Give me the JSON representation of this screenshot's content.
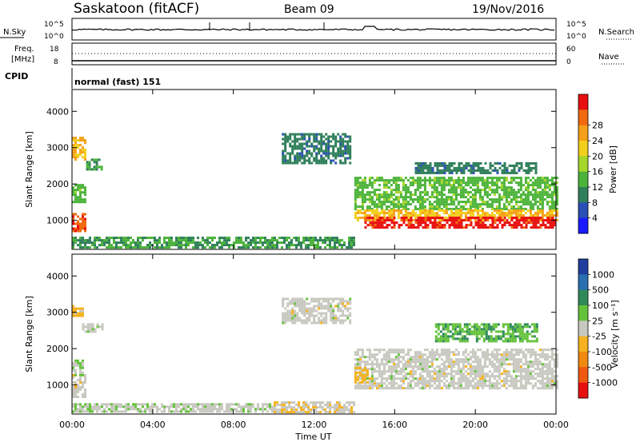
{
  "header": {
    "station": "Saskatoon (fitACF)",
    "beam": "Beam 09",
    "date": "19/Nov/2016"
  },
  "noise_panel": {
    "left_label": "N.Sky",
    "left_ticks": [
      "10^5",
      "10^0"
    ],
    "right_label": "N.Search",
    "right_ticks": [
      "10^5",
      "10^0"
    ]
  },
  "freq_panel": {
    "left_label": "Freq.",
    "left_unit": "[MHz]",
    "left_ticks": [
      "18",
      "8"
    ],
    "right_label": "Nave",
    "right_ticks": [
      "60",
      "0"
    ]
  },
  "cpid": {
    "label": "CPID",
    "value": "normal (fast) 151"
  },
  "time_axis": {
    "title": "Time UT",
    "ticks": [
      "00:00",
      "04:00",
      "08:00",
      "12:00",
      "16:00",
      "20:00",
      "00:00"
    ]
  },
  "range_axis": {
    "title": "Slant Range [km]",
    "ticks": [
      "1000",
      "2000",
      "3000",
      "4000"
    ]
  },
  "power_colorbar": {
    "title": "Power [dB]",
    "ticks": [
      "4",
      "8",
      "12",
      "16",
      "20",
      "24",
      "28"
    ],
    "colors": [
      "#1a1aff",
      "#2a4fb5",
      "#2f7f5a",
      "#4bb33a",
      "#a5d62a",
      "#f2cf1d",
      "#f5a018",
      "#f06a10",
      "#e81010"
    ]
  },
  "velocity_colorbar": {
    "title": "Velocity [m s⁻¹]",
    "ticks": [
      "1000",
      "500",
      "100",
      "25",
      "-25",
      "-100",
      "-500",
      "-1000"
    ],
    "colors": [
      "#1f3f9f",
      "#2a6fb0",
      "#2f8a5a",
      "#64c23a",
      "#c8c8c0",
      "#f5b21e",
      "#f08a10",
      "#ef5a10",
      "#e81010"
    ]
  },
  "chart_data": [
    {
      "type": "heatmap",
      "title": "Power [dB]",
      "xlabel": "Time UT",
      "ylabel": "Slant Range [km]",
      "xlim": [
        0,
        24
      ],
      "ylim": [
        200,
        4600
      ],
      "colorbar_range": [
        0,
        30
      ],
      "regions": [
        {
          "t0": 0.0,
          "t1": 0.7,
          "r0": 700,
          "r1": 1200,
          "value": 26
        },
        {
          "t0": 0.0,
          "t1": 0.7,
          "r0": 1500,
          "r1": 2000,
          "value": 12
        },
        {
          "t0": 0.0,
          "t1": 0.7,
          "r0": 2700,
          "r1": 3300,
          "value": 20
        },
        {
          "t0": 0.7,
          "t1": 1.5,
          "r0": 2400,
          "r1": 2700,
          "value": 10
        },
        {
          "t0": 0.0,
          "t1": 14.0,
          "r0": 250,
          "r1": 550,
          "value": 10
        },
        {
          "t0": 10.4,
          "t1": 13.8,
          "r0": 2600,
          "r1": 3400,
          "value": 8
        },
        {
          "t0": 14.0,
          "t1": 24.0,
          "r0": 1300,
          "r1": 2200,
          "value": 12
        },
        {
          "t0": 14.0,
          "t1": 24.0,
          "r0": 1000,
          "r1": 1300,
          "value": 20
        },
        {
          "t0": 14.5,
          "t1": 24.0,
          "r0": 800,
          "r1": 1100,
          "value": 28
        },
        {
          "t0": 17.0,
          "t1": 23.0,
          "r0": 2300,
          "r1": 2600,
          "value": 8
        }
      ]
    },
    {
      "type": "heatmap",
      "title": "Velocity [m s⁻¹]",
      "xlabel": "Time UT",
      "ylabel": "Slant Range [km]",
      "xlim": [
        0,
        24
      ],
      "ylim": [
        200,
        4600
      ],
      "colorbar_range": [
        -1000,
        1000
      ],
      "regions": [
        {
          "t0": 0.0,
          "t1": 0.7,
          "r0": 700,
          "r1": 1300,
          "value": 0
        },
        {
          "t0": 0.0,
          "t1": 0.5,
          "r0": 1300,
          "r1": 1700,
          "value": 100
        },
        {
          "t0": 0.0,
          "t1": 0.5,
          "r0": 2900,
          "r1": 3200,
          "value": -200
        },
        {
          "t0": 0.5,
          "t1": 1.5,
          "r0": 2500,
          "r1": 2700,
          "value": 0
        },
        {
          "t0": 0.0,
          "t1": 10.0,
          "r0": 250,
          "r1": 500,
          "value": 50
        },
        {
          "t0": 10.0,
          "t1": 14.0,
          "r0": 250,
          "r1": 550,
          "value": -60
        },
        {
          "t0": 10.4,
          "t1": 13.8,
          "r0": 2700,
          "r1": 3400,
          "value": 0
        },
        {
          "t0": 14.0,
          "t1": 24.0,
          "r0": 900,
          "r1": 2000,
          "value": 0
        },
        {
          "t0": 14.0,
          "t1": 14.6,
          "r0": 1100,
          "r1": 1500,
          "value": -200
        },
        {
          "t0": 18.0,
          "t1": 23.0,
          "r0": 2200,
          "r1": 2700,
          "value": 300
        }
      ]
    }
  ]
}
